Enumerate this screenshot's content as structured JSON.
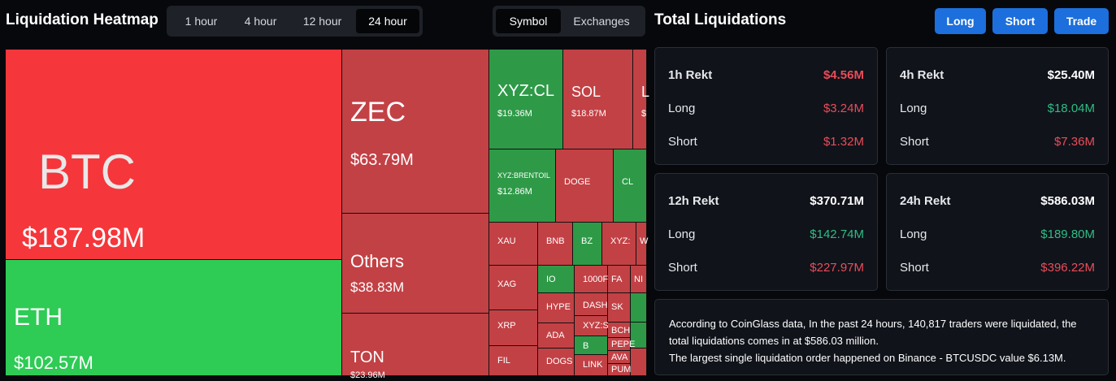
{
  "heatmap": {
    "title": "Liquidation Heatmap",
    "time_options": [
      "1 hour",
      "4 hour",
      "12 hour",
      "24 hour"
    ],
    "active_time": "24 hour",
    "view_options": [
      "Symbol",
      "Exchanges"
    ],
    "active_view": "Symbol",
    "tiles": [
      {
        "sym": "BTC",
        "val": "$187.98M",
        "color": "#f5363b"
      },
      {
        "sym": "ETH",
        "val": "$102.57M",
        "color": "#2ecb55"
      },
      {
        "sym": "ZEC",
        "val": "$63.79M",
        "color": "#c24145"
      },
      {
        "sym": "Others",
        "val": "$38.83M",
        "color": "#c24145"
      },
      {
        "sym": "TON",
        "val": "$23.96M",
        "color": "#c24145"
      },
      {
        "sym": "XYZ:CL",
        "val": "$19.36M",
        "color": "#2e9a47"
      },
      {
        "sym": "SOL",
        "val": "$18.87M",
        "color": "#c24145"
      },
      {
        "sym": "L",
        "val": "$",
        "color": "#c24145"
      },
      {
        "sym": "XYZ:BRENTOIL",
        "val": "$12.86M",
        "color": "#2e9a47"
      },
      {
        "sym": "DOGE",
        "val": "",
        "color": "#c24145"
      },
      {
        "sym": "CL",
        "val": "",
        "color": "#2e9a47"
      },
      {
        "sym": "XAU",
        "val": "",
        "color": "#c24145"
      },
      {
        "sym": "BNB",
        "val": "",
        "color": "#c24145"
      },
      {
        "sym": "BZ",
        "val": "",
        "color": "#2e9a47"
      },
      {
        "sym": "XYZ:",
        "val": "",
        "color": "#c24145"
      },
      {
        "sym": "W",
        "val": "",
        "color": "#c24145"
      },
      {
        "sym": "XAG",
        "val": "",
        "color": "#c24145"
      },
      {
        "sym": "IO",
        "val": "",
        "color": "#2e9a47"
      },
      {
        "sym": "1000F",
        "val": "",
        "color": "#c24145"
      },
      {
        "sym": "FA",
        "val": "",
        "color": "#c24145"
      },
      {
        "sym": "NI",
        "val": "",
        "color": "#c24145"
      },
      {
        "sym": "HYPE",
        "val": "",
        "color": "#c24145"
      },
      {
        "sym": "DASH",
        "val": "",
        "color": "#c24145"
      },
      {
        "sym": "SK",
        "val": "",
        "color": "#c24145"
      },
      {
        "sym": "",
        "val": "",
        "color": "#2e9a47"
      },
      {
        "sym": "XRP",
        "val": "",
        "color": "#c24145"
      },
      {
        "sym": "ADA",
        "val": "",
        "color": "#c24145"
      },
      {
        "sym": "XYZ:S",
        "val": "",
        "color": "#c24145"
      },
      {
        "sym": "BCH",
        "val": "",
        "color": "#c24145"
      },
      {
        "sym": "",
        "val": "",
        "color": "#2e9a47"
      },
      {
        "sym": "B",
        "val": "",
        "color": "#2e9a47"
      },
      {
        "sym": "PEPE",
        "val": "",
        "color": "#c24145"
      },
      {
        "sym": "FIL",
        "val": "",
        "color": "#c24145"
      },
      {
        "sym": "DOGS",
        "val": "",
        "color": "#c24145"
      },
      {
        "sym": "LINK",
        "val": "",
        "color": "#c24145"
      },
      {
        "sym": "AVA",
        "val": "",
        "color": "#c24145"
      },
      {
        "sym": "PUM",
        "val": "",
        "color": "#c24145"
      },
      {
        "sym": "",
        "val": "",
        "color": "#c24145"
      }
    ]
  },
  "totals": {
    "title": "Total Liquidations",
    "buttons": [
      "Long",
      "Short",
      "Trade"
    ],
    "cards": [
      {
        "label": "1h Rekt",
        "total": "$4.56M",
        "long_label": "Long",
        "long": "$3.24M",
        "short_label": "Short",
        "short": "$1.32M"
      },
      {
        "label": "4h Rekt",
        "total": "$25.40M",
        "long_label": "Long",
        "long": "$18.04M",
        "short_label": "Short",
        "short": "$7.36M"
      },
      {
        "label": "12h Rekt",
        "total": "$370.71M",
        "long_label": "Long",
        "long": "$142.74M",
        "short_label": "Short",
        "short": "$227.97M"
      },
      {
        "label": "24h Rekt",
        "total": "$586.03M",
        "long_label": "Long",
        "long": "$189.80M",
        "short_label": "Short",
        "short": "$396.22M"
      }
    ],
    "info_line1": "According to CoinGlass data, In the past 24 hours, 140,817 traders were liquidated, the total liquidations comes in at $586.03 million.",
    "info_line2": "The largest single liquidation order happened on Binance - BTCUSDC value $6.13M."
  },
  "colors": {
    "long": "#2ebd85",
    "short": "#ea4c5a",
    "accent": "#1c6fdc"
  }
}
